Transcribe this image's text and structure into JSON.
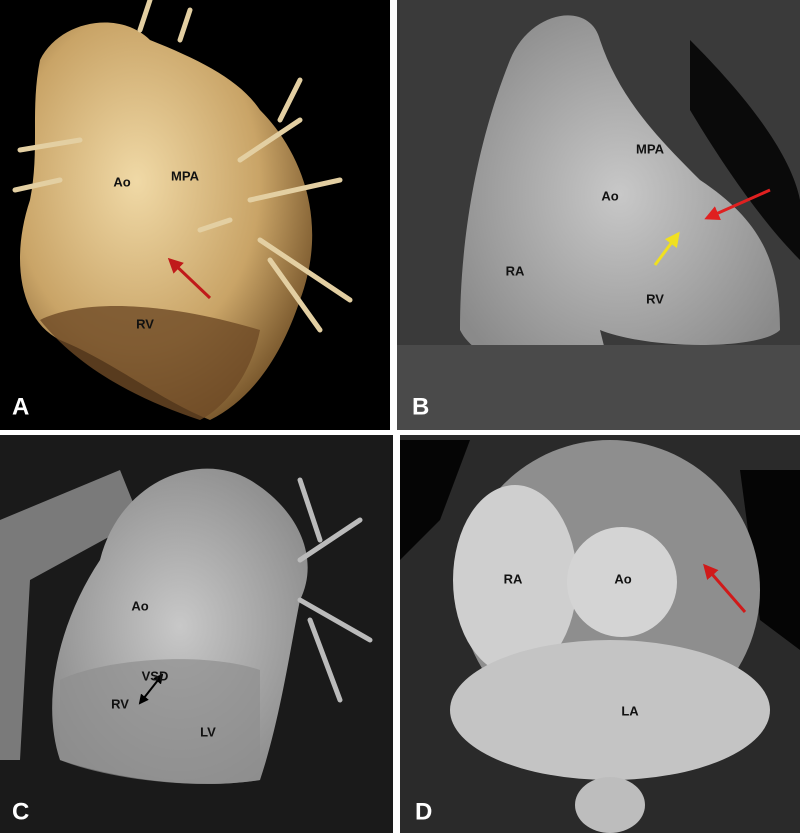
{
  "panels": [
    {
      "letter": "A",
      "labels": [
        "Ao",
        "MPA",
        "RV"
      ]
    },
    {
      "letter": "B",
      "labels": [
        "MPA",
        "Ao",
        "RA",
        "RV"
      ]
    },
    {
      "letter": "C",
      "labels": [
        "Ao",
        "VSD",
        "RV",
        "LV"
      ]
    },
    {
      "letter": "D",
      "labels": [
        "RA",
        "Ao",
        "LA"
      ]
    }
  ]
}
